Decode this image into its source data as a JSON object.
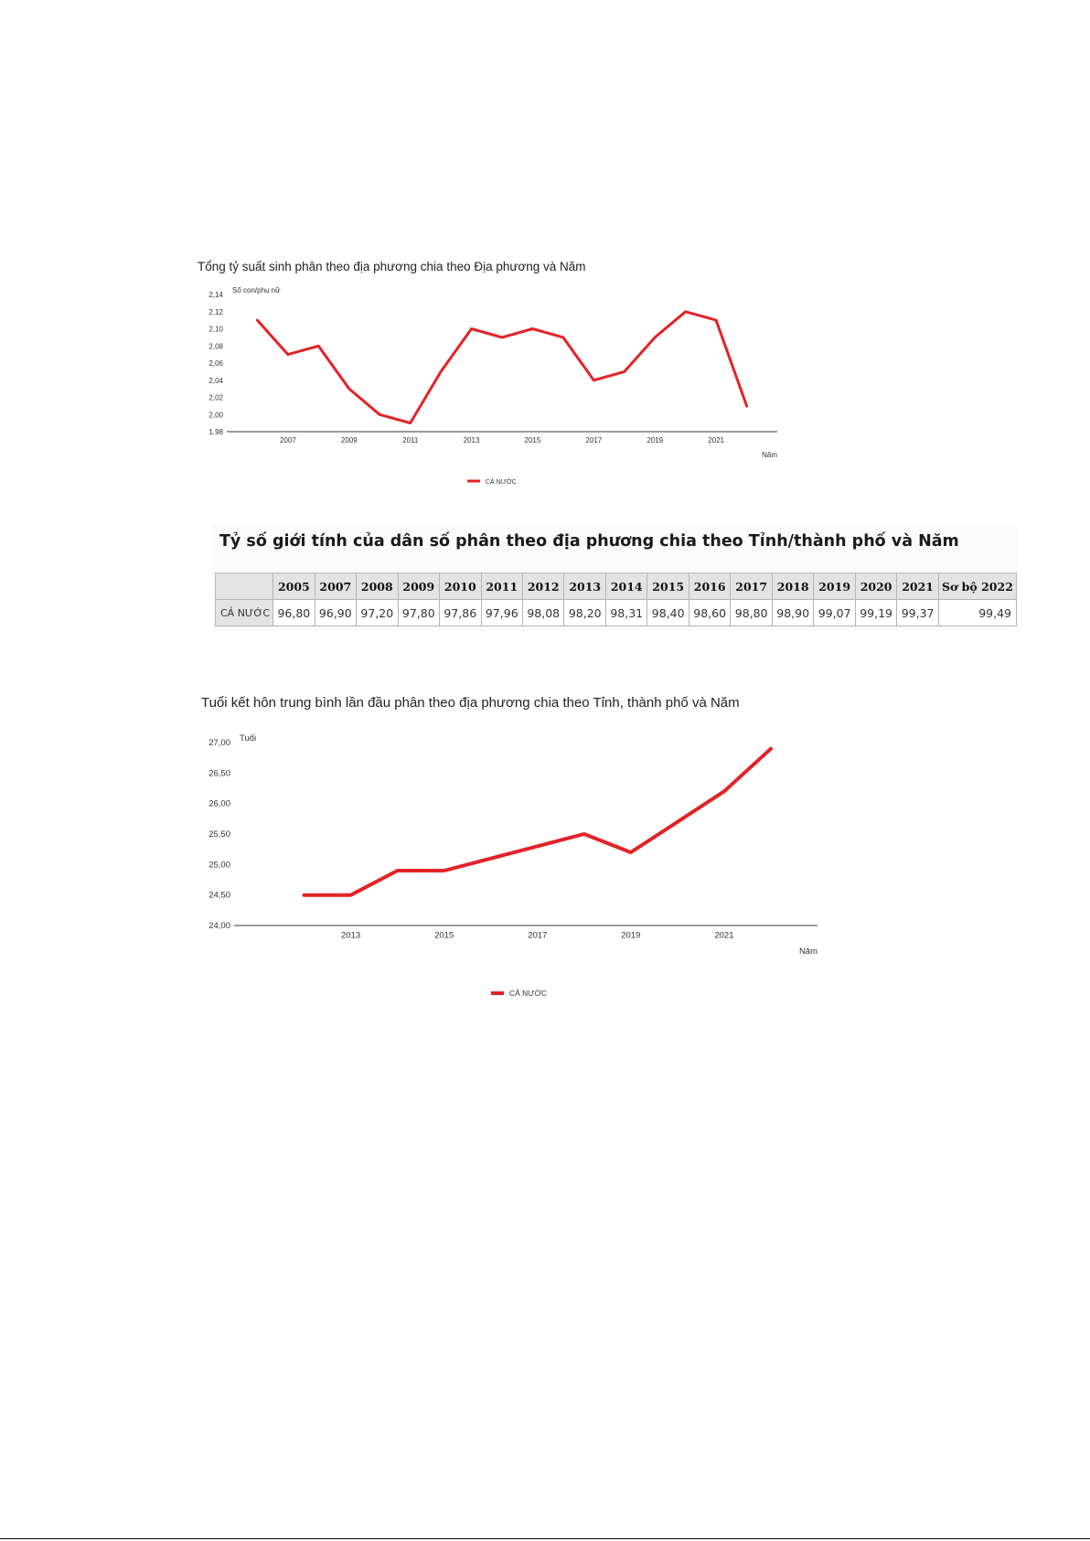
{
  "chart_data": [
    {
      "type": "line",
      "title": "Tổng tỷ suất sinh phân theo địa phương chia theo Địa phương và Năm",
      "ylabel": "Số con/phụ nữ",
      "xlabel": "Năm",
      "x": [
        2006,
        2007,
        2008,
        2009,
        2010,
        2011,
        2012,
        2013,
        2014,
        2015,
        2016,
        2017,
        2018,
        2019,
        2020,
        2021,
        2022
      ],
      "series": [
        {
          "name": "CẢ NƯỚC",
          "values": [
            2.11,
            2.07,
            2.08,
            2.03,
            2.0,
            1.99,
            2.05,
            2.1,
            2.09,
            2.1,
            2.09,
            2.04,
            2.05,
            2.09,
            2.12,
            2.11,
            2.01
          ],
          "color": "#e32227"
        }
      ],
      "xticks": [
        2007,
        2009,
        2011,
        2013,
        2015,
        2017,
        2019,
        2021
      ],
      "yticks": [
        "1,98",
        "2,00",
        "2,02",
        "2,04",
        "2,06",
        "2,08",
        "2,10",
        "2,12",
        "2,14"
      ],
      "ylim": [
        1.98,
        2.14
      ],
      "xlim": [
        2005,
        2023
      ],
      "grid": false,
      "legend": "bottom-center"
    },
    {
      "type": "table",
      "title": "Tỷ số giới tính của dân số phân theo địa phương chia theo Tỉnh/thành phố và Năm",
      "columns": [
        "2005",
        "2007",
        "2008",
        "2009",
        "2010",
        "2011",
        "2012",
        "2013",
        "2014",
        "2015",
        "2016",
        "2017",
        "2018",
        "2019",
        "2020",
        "2021",
        "Sơ bộ 2022"
      ],
      "rows": [
        {
          "label": "CẢ NƯỚC",
          "values": [
            "96,80",
            "96,90",
            "97,20",
            "97,80",
            "97,86",
            "97,96",
            "98,08",
            "98,20",
            "98,31",
            "98,40",
            "98,60",
            "98,80",
            "98,90",
            "99,07",
            "99,19",
            "99,37",
            "99,49"
          ]
        }
      ]
    },
    {
      "type": "line",
      "title": "Tuổi kết hôn trung bình lần đầu phân theo địa phương chia theo Tỉnh, thành phố và Năm",
      "ylabel": "Tuổi",
      "xlabel": "Năm",
      "x": [
        2012,
        2013,
        2014,
        2015,
        2016,
        2017,
        2018,
        2019,
        2020,
        2021,
        2022
      ],
      "series": [
        {
          "name": "CẢ NƯỚC",
          "values": [
            24.5,
            24.5,
            24.9,
            24.9,
            25.1,
            25.3,
            25.5,
            25.2,
            25.7,
            26.2,
            26.9
          ],
          "color": "#e32227"
        }
      ],
      "xticks": [
        2013,
        2015,
        2017,
        2019,
        2021
      ],
      "yticks": [
        "24,00",
        "24,50",
        "25,00",
        "25,50",
        "26,00",
        "26,50",
        "27,00"
      ],
      "ylim": [
        24.0,
        27.0
      ],
      "xlim": [
        2010.5,
        2023
      ],
      "grid": false,
      "legend": "bottom-center"
    }
  ]
}
